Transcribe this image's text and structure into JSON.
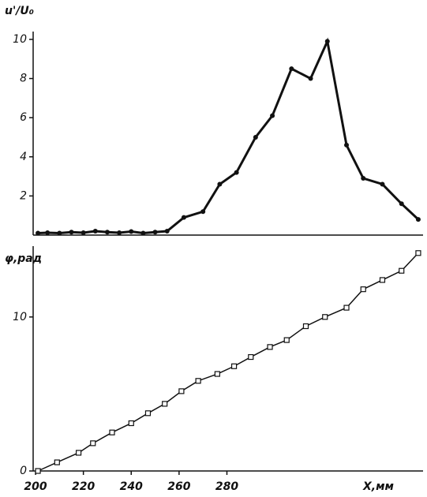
{
  "chart_data": [
    {
      "type": "line",
      "y_label": "u'/U₀",
      "series": [
        {
          "name": null,
          "color": "#111",
          "marker": "circle",
          "x": [
            201,
            205,
            210,
            215,
            220,
            225,
            230,
            235,
            240,
            245,
            250,
            255,
            262,
            270,
            277,
            284,
            292,
            299,
            307,
            315,
            322,
            330,
            337,
            345,
            353,
            360
          ],
          "values": [
            0.1,
            0.12,
            0.1,
            0.15,
            0.12,
            0.2,
            0.15,
            0.12,
            0.18,
            0.1,
            0.15,
            0.2,
            0.9,
            1.2,
            2.6,
            3.2,
            5.0,
            6.1,
            8.5,
            8.0,
            9.9,
            4.6,
            2.9,
            2.6,
            1.6,
            0.8
          ]
        }
      ],
      "xlim": [
        199,
        362
      ],
      "ylim": [
        0,
        10.4
      ],
      "yticks": [
        2,
        4,
        6,
        8,
        10
      ]
    },
    {
      "type": "line",
      "y_label": "φ,рад",
      "x_label": "X,мм",
      "series": [
        {
          "name": null,
          "color": "#111",
          "marker": "square",
          "x": [
            201,
            209,
            218,
            224,
            232,
            240,
            247,
            254,
            261,
            268,
            276,
            283,
            290,
            298,
            305,
            313,
            321,
            330,
            337,
            345,
            353,
            360
          ],
          "values": [
            0,
            0.56,
            1.18,
            1.8,
            2.5,
            3.1,
            3.75,
            4.36,
            5.18,
            5.85,
            6.3,
            6.8,
            7.4,
            8.05,
            8.5,
            9.4,
            10.0,
            10.6,
            11.8,
            12.4,
            13.0,
            14.15
          ]
        }
      ],
      "xlim": [
        199,
        362
      ],
      "xticks": [
        200,
        220,
        240,
        260,
        280
      ],
      "ylim": [
        0,
        14.6
      ],
      "yticks": [
        0,
        10
      ]
    }
  ]
}
